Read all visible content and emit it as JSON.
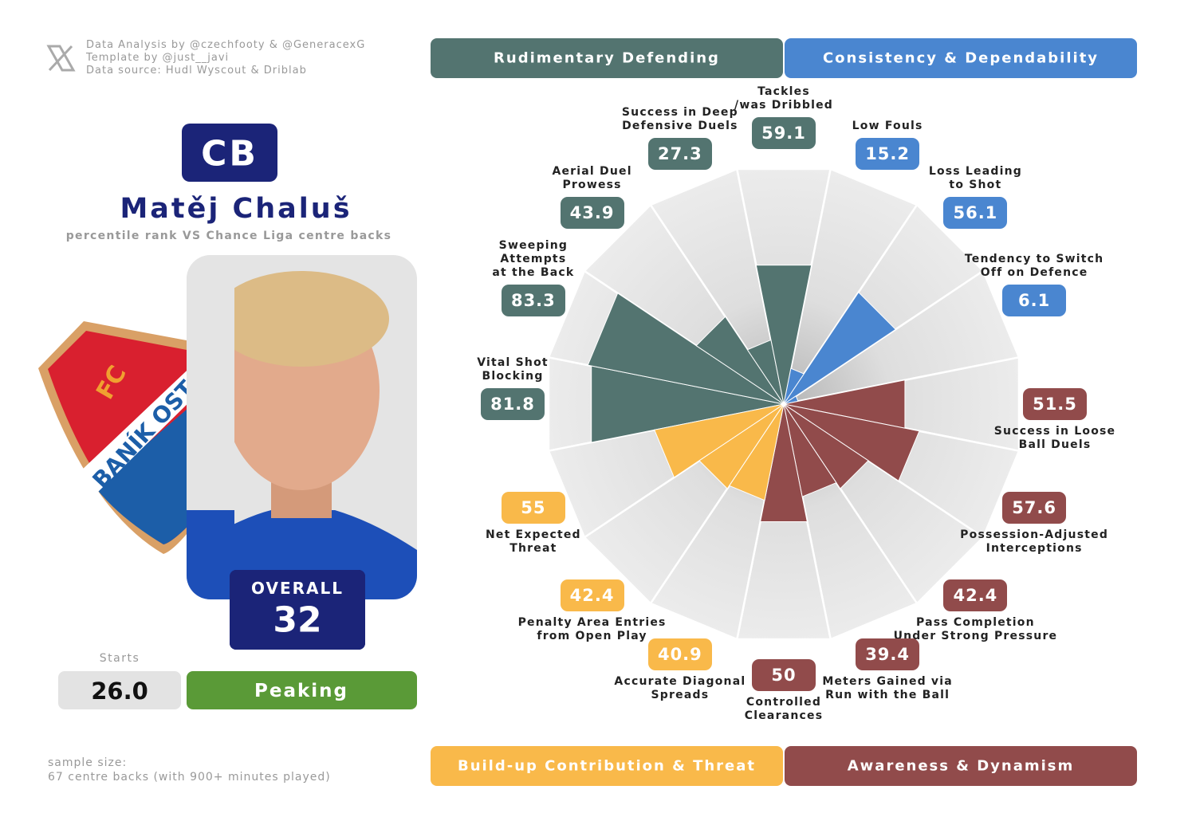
{
  "credits": [
    "Data Analysis by @czechfooty & @GeneracexG",
    "Template by @just__javi",
    "Data source: Hudl Wyscout & Driblab"
  ],
  "crest": [
    "FC",
    "BANÍK OST"
  ],
  "player": {
    "position": "CB",
    "name": "Matěj Chaluš",
    "subtitle": "percentile rank VS Chance Liga centre backs",
    "overall_label": "OVERALL",
    "overall": 32,
    "starts_label": "Starts",
    "starts": "26.0",
    "status": "Peaking"
  },
  "sample": [
    "sample size:",
    "67 centre backs (with 900+ minutes played)"
  ],
  "chart_data": {
    "type": "polar_bar",
    "rlim": [
      0,
      100
    ],
    "series": [
      {
        "name": "Rudimentary Defending",
        "color": "#537470",
        "categories": [
          "Vital Shot\nBlocking",
          "Sweeping\nAttempts\nat the Back",
          "Aerial Duel\nProwess",
          "Success in Deep\nDefensive Duels",
          "Tackles\n/was Dribbled"
        ],
        "values": [
          81.8,
          83.3,
          43.9,
          27.3,
          59.1
        ]
      },
      {
        "name": "Consistency & Dependability",
        "color": "#4a86d0",
        "categories": [
          "Low Fouls",
          "Loss Leading\nto Shot",
          "Tendency to Switch\nOff on Defence"
        ],
        "values": [
          15.2,
          56.1,
          6.1
        ]
      },
      {
        "name": "Awareness & Dynamism",
        "color": "#914b4b",
        "categories": [
          "Success in Loose\nBall Duels",
          "Possession-Adjusted\nInterceptions",
          "Pass Completion\nUnder Strong Pressure",
          "Meters Gained via\nRun with the Ball",
          "Controlled\nClearances"
        ],
        "values": [
          51.5,
          57.6,
          42.4,
          39.4,
          50
        ]
      },
      {
        "name": "Build-up Contribution & Threat",
        "color": "#f9b94a",
        "categories": [
          "Accurate Diagonal\nSpreads",
          "Penalty Area Entries\nfrom Open Play",
          "Net Expected\nThreat"
        ],
        "values": [
          40.9,
          42.4,
          55
        ]
      }
    ]
  }
}
